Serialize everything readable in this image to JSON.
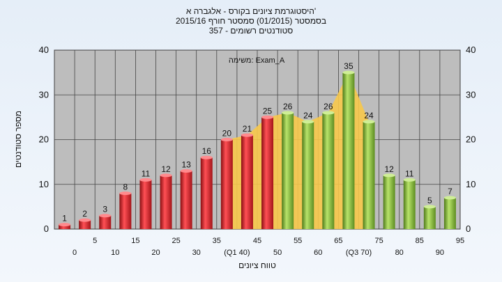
{
  "header": {
    "title_line1": "היסטוגרמת ציונים בקורס - אלגברה א'",
    "title_line2": "בסמסטר (01/2015) סמסטר חורף 2015/16",
    "title_line3": "357 - סטודנטים רשומים"
  },
  "chart_data": {
    "type": "bar",
    "title": "היסטוגרמת ציונים בקורס - אלגברה א'",
    "subtitle": "בסמסטר (01/2015) סמסטר חורף 2015/16 | 357 - סטודנטים רשומים",
    "xlabel": "טווח ציונים",
    "ylabel": "מספר סטודנטים",
    "annotation": "משימה: Exam_A",
    "ylim": [
      0,
      40
    ],
    "yticks": [
      0,
      10,
      20,
      30,
      40
    ],
    "grid": true,
    "categories": [
      "0",
      "5",
      "10",
      "15",
      "20",
      "25",
      "30",
      "35",
      "40",
      "45",
      "50",
      "55",
      "60",
      "65",
      "70",
      "75",
      "80",
      "85",
      "90",
      "95"
    ],
    "tick_labels": [
      "0",
      "5",
      "10",
      "15",
      "20",
      "25",
      "30",
      "35",
      "(Q1 40)",
      "45",
      "50",
      "55",
      "60",
      "65",
      "(Q3 70)",
      "75",
      "80",
      "85",
      "90",
      "95"
    ],
    "values": [
      1,
      2,
      3,
      8,
      11,
      12,
      13,
      16,
      20,
      21,
      25,
      26,
      24,
      26,
      35,
      24,
      12,
      11,
      5,
      7
    ],
    "bar_colors": [
      "#e0262a",
      "#e0262a",
      "#e0262a",
      "#e0262a",
      "#e0262a",
      "#e0262a",
      "#e0262a",
      "#e0262a",
      "#e0262a",
      "#e0262a",
      "#e0262a",
      "#8bbf3a",
      "#8bbf3a",
      "#8bbf3a",
      "#8bbf3a",
      "#8bbf3a",
      "#8bbf3a",
      "#8bbf3a",
      "#8bbf3a",
      "#8bbf3a"
    ],
    "iqr_band": {
      "from": "40",
      "to": "70",
      "color": "#f7c84a"
    },
    "plot_bg": "#bdbdbd"
  }
}
